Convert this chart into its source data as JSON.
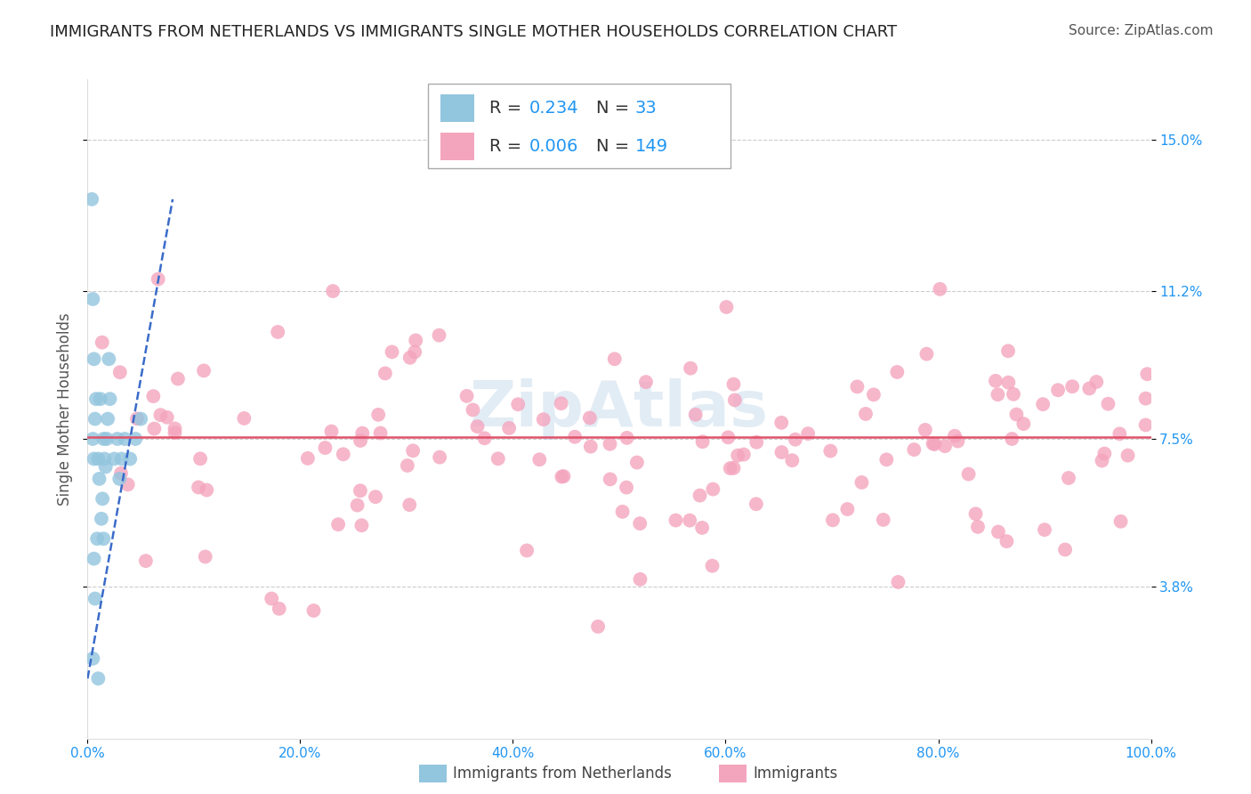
{
  "title": "IMMIGRANTS FROM NETHERLANDS VS IMMIGRANTS SINGLE MOTHER HOUSEHOLDS CORRELATION CHART",
  "source": "Source: ZipAtlas.com",
  "ylabel": "Single Mother Households",
  "legend_label_blue": "Immigrants from Netherlands",
  "legend_label_pink": "Immigrants",
  "R_blue": 0.234,
  "N_blue": 33,
  "R_pink": 0.006,
  "N_pink": 149,
  "x_min": 0.0,
  "x_max": 100.0,
  "y_min": 0.0,
  "y_max": 16.5,
  "y_ticks": [
    3.8,
    7.5,
    11.2,
    15.0
  ],
  "blue_color": "#92c5de",
  "pink_color": "#f4a5be",
  "blue_line_color": "#3a6bc9",
  "pink_line_color": "#e0526a",
  "title_fontsize": 13,
  "source_fontsize": 11,
  "axis_label_fontsize": 12,
  "tick_fontsize": 11,
  "legend_fontsize": 14,
  "stat_label_color": "#333333",
  "stat_value_color": "#2196F3",
  "watermark_text": "ZipAtlas",
  "watermark_color": "#b8d0e8",
  "watermark_alpha": 0.4,
  "blue_x": [
    0.4,
    0.5,
    0.5,
    0.6,
    0.6,
    0.7,
    0.7,
    0.8,
    0.9,
    1.0,
    1.0,
    1.1,
    1.2,
    1.3,
    1.4,
    1.5,
    1.5,
    1.6,
    1.7,
    1.8,
    1.9,
    2.0,
    2.1,
    2.5,
    2.8,
    3.0,
    3.2,
    3.5,
    4.0,
    4.5,
    5.0,
    0.5,
    0.6
  ],
  "blue_y": [
    13.5,
    11.0,
    7.5,
    9.5,
    7.0,
    8.0,
    3.5,
    8.5,
    5.0,
    7.0,
    1.5,
    6.5,
    8.5,
    5.5,
    6.0,
    7.5,
    5.0,
    7.0,
    6.8,
    7.5,
    8.0,
    9.5,
    8.5,
    7.0,
    7.5,
    6.5,
    7.0,
    7.5,
    7.0,
    7.5,
    8.0,
    2.0,
    4.5
  ]
}
